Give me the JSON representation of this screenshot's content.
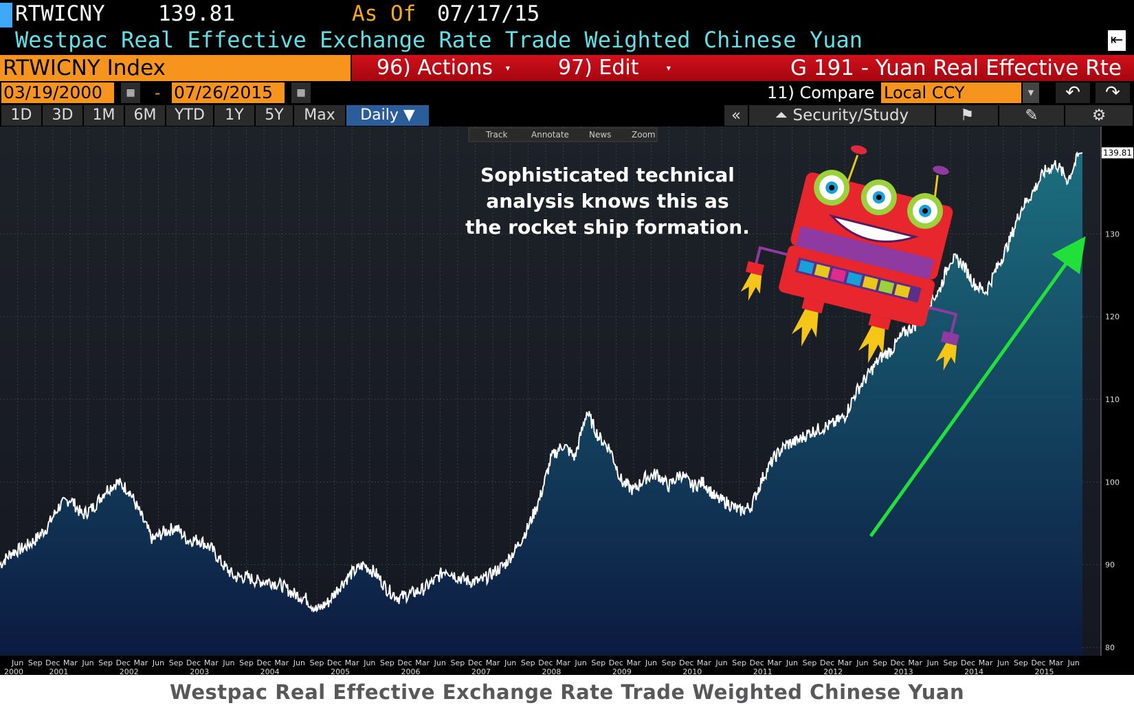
{
  "header": {
    "ticker": "RTWICNY",
    "last_value": "139.81",
    "as_of_label": "As Of",
    "as_of_date": "07/17/15",
    "long_name": "Westpac Real Effective Exchange Rate Trade Weighted Chinese Yuan"
  },
  "command_bar": {
    "security": "RTWICNY Index",
    "actions": "96) Actions",
    "edit": "97) Edit",
    "graph_title": "G 191 - Yuan Real Effective Rte"
  },
  "date_range": {
    "start": "03/19/2000",
    "separator": "-",
    "end": "07/26/2015",
    "compare_label": "11) Compare",
    "currency": "Local CCY"
  },
  "period_tabs": [
    "1D",
    "3D",
    "1M",
    "6M",
    "YTD",
    "1Y",
    "5Y",
    "Max"
  ],
  "frequency": "Daily ▼",
  "toolbar": {
    "collapse": "«",
    "security_study": "Security/Study"
  },
  "chart_tools": [
    "Track",
    "Annotate",
    "News",
    "Zoom"
  ],
  "annotation": {
    "line1": "Sophisticated technical",
    "line2": "analysis knows this as",
    "line3": "the rocket ship formation."
  },
  "colors": {
    "accent_orange": "#f7941d",
    "command_red": "#c80a14",
    "area_top": "#1c6f80",
    "area_bottom": "#0c1a40",
    "arrow": "#22e03a",
    "long_name": "#5fe0e6"
  },
  "chart_data": {
    "type": "area",
    "title": "Westpac Real Effective Exchange Rate Trade Weighted Chinese Yuan",
    "last_value_label": "139.81",
    "ylim": [
      79,
      143
    ],
    "yticks": [
      80,
      90,
      100,
      110,
      120,
      130
    ],
    "x_range": [
      "2000-03",
      "2015-07"
    ],
    "x_month_ticks": [
      "Jun",
      "Sep",
      "Dec",
      "Mar",
      "Jun",
      "Sep",
      "Dec",
      "Mar",
      "Jun",
      "Sep",
      "Dec",
      "Mar",
      "Jun",
      "Sep",
      "Dec",
      "Mar",
      "Jun",
      "Sep",
      "Dec",
      "Mar",
      "Jun",
      "Sep",
      "Dec",
      "Mar",
      "Jun",
      "Sep",
      "Dec",
      "Mar",
      "Jun",
      "Sep",
      "Dec",
      "Mar",
      "Jun",
      "Sep",
      "Dec",
      "Mar",
      "Jun",
      "Sep",
      "Dec",
      "Mar",
      "Jun",
      "Sep",
      "Dec",
      "Mar",
      "Jun",
      "Sep",
      "Dec",
      "Mar",
      "Jun",
      "Sep",
      "Dec",
      "Mar",
      "Jun",
      "Sep",
      "Dec",
      "Mar",
      "Jun",
      "Sep",
      "Dec",
      "Mar",
      "Jun"
    ],
    "x_year_labels": [
      "2000",
      "2001",
      "2002",
      "2003",
      "2004",
      "2005",
      "2006",
      "2007",
      "2008",
      "2009",
      "2010",
      "2011",
      "2012",
      "2013",
      "2014",
      "2015"
    ],
    "grid": true,
    "series": [
      {
        "x": [
          "2000-03",
          "2000-05",
          "2000-07",
          "2000-09",
          "2000-11",
          "2001-01",
          "2001-03",
          "2001-05",
          "2001-07",
          "2001-09",
          "2001-11",
          "2002-01",
          "2002-03",
          "2002-05",
          "2002-07",
          "2002-09",
          "2002-11",
          "2003-01",
          "2003-03",
          "2003-05",
          "2003-07",
          "2003-09",
          "2003-11",
          "2004-01",
          "2004-03",
          "2004-05",
          "2004-07",
          "2004-09",
          "2004-11",
          "2005-01",
          "2005-03",
          "2005-05",
          "2005-07",
          "2005-09",
          "2005-11",
          "2006-01",
          "2006-03",
          "2006-05",
          "2006-07",
          "2006-09",
          "2006-11",
          "2007-01",
          "2007-03",
          "2007-05",
          "2007-07",
          "2007-09",
          "2007-11",
          "2008-01",
          "2008-03",
          "2008-05",
          "2008-07",
          "2008-09",
          "2008-11",
          "2009-01",
          "2009-03",
          "2009-05",
          "2009-07",
          "2009-09",
          "2009-11",
          "2010-01",
          "2010-03",
          "2010-05",
          "2010-07",
          "2010-09",
          "2010-11",
          "2011-01",
          "2011-03",
          "2011-05",
          "2011-07",
          "2011-09",
          "2011-11",
          "2012-01",
          "2012-03",
          "2012-05",
          "2012-07",
          "2012-09",
          "2012-11",
          "2013-01",
          "2013-03",
          "2013-05",
          "2013-07",
          "2013-09",
          "2013-11",
          "2014-01",
          "2014-03",
          "2014-05",
          "2014-07",
          "2014-09",
          "2014-11",
          "2015-01",
          "2015-03",
          "2015-05",
          "2015-07"
        ],
        "y": [
          90.0,
          91.5,
          92.0,
          93.0,
          94.5,
          97.0,
          98.0,
          96.0,
          97.0,
          99.0,
          100.0,
          99.0,
          96.0,
          93.0,
          94.0,
          94.5,
          93.0,
          93.0,
          92.0,
          90.0,
          88.5,
          88.5,
          88.0,
          88.0,
          87.5,
          86.5,
          86.0,
          84.5,
          85.5,
          87.5,
          89.0,
          90.0,
          89.0,
          87.0,
          86.0,
          86.5,
          87.0,
          88.0,
          89.5,
          88.5,
          88.0,
          88.0,
          89.0,
          90.0,
          92.0,
          94.5,
          98.0,
          103.0,
          104.5,
          103.0,
          108.5,
          105.5,
          104.0,
          100.0,
          99.0,
          100.5,
          101.0,
          99.5,
          101.0,
          99.5,
          100.0,
          98.0,
          97.5,
          96.5,
          97.0,
          100.5,
          103.0,
          104.5,
          105.0,
          106.0,
          106.5,
          107.0,
          108.0,
          111.0,
          113.0,
          115.0,
          116.0,
          118.0,
          119.0,
          121.5,
          123.0,
          127.0,
          126.5,
          124.0,
          123.0,
          126.0,
          129.0,
          133.0,
          135.0,
          137.5,
          138.5,
          136.5,
          139.81
        ]
      }
    ]
  }
}
